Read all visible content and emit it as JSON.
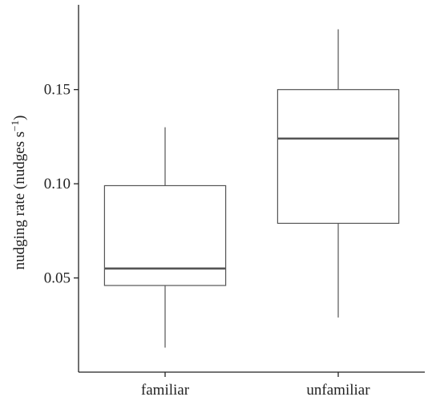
{
  "chart_data": {
    "type": "boxplot",
    "title": "",
    "xlabel": "",
    "ylabel": "nudging rate (nudges s",
    "ylabel_superscript": "−1",
    "ylabel_suffix": ")",
    "ylim": [
      0.0,
      0.195
    ],
    "yticks": [
      0.05,
      0.1,
      0.15
    ],
    "ytick_labels": [
      "0.05",
      "0.10",
      "0.15"
    ],
    "grid": false,
    "legend": "none",
    "categories": [
      "familiar",
      "unfamiliar"
    ],
    "boxes": [
      {
        "category": "familiar",
        "whisker_low": 0.013,
        "q1": 0.046,
        "median": 0.055,
        "q3": 0.099,
        "whisker_high": 0.13
      },
      {
        "category": "unfamiliar",
        "whisker_low": 0.029,
        "q1": 0.079,
        "median": 0.124,
        "q3": 0.15,
        "whisker_high": 0.182
      }
    ],
    "colors": {
      "box": "#555555",
      "median": "#555555",
      "axis": "#222222"
    }
  }
}
